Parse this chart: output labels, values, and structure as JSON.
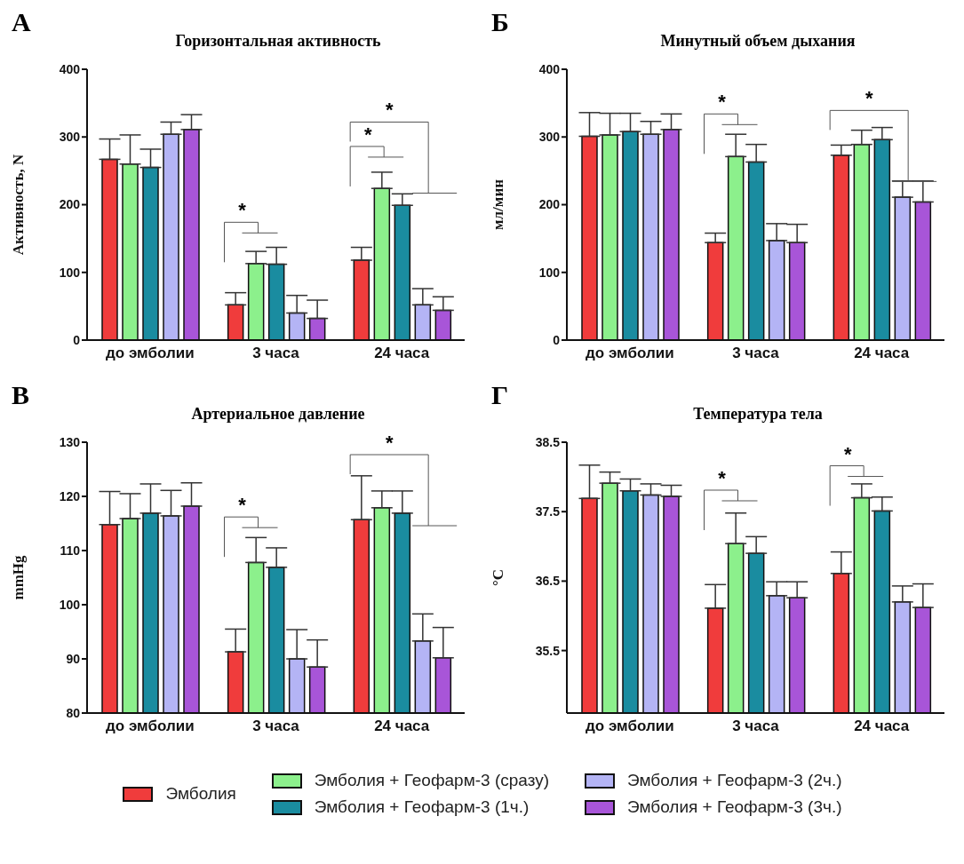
{
  "chart_data": [
    {
      "type": "bar",
      "title": "Горизонтальная активность",
      "ylabel": "Активность, N",
      "categories": [
        "до эмболии",
        "3 часа",
        "24 часа"
      ],
      "ylim": [
        0,
        400
      ],
      "yticks": [
        0,
        100,
        200,
        300,
        400
      ],
      "grid": false,
      "legend": false,
      "annotations": [
        "А",
        "*",
        "*",
        "*"
      ],
      "series": [
        {
          "color": "#f03c3c",
          "values": [
            267,
            52,
            118
          ],
          "errors": [
            [
              267,
              297
            ],
            [
              52,
              70
            ],
            [
              118,
              137
            ]
          ]
        },
        {
          "color": "#8cf08c",
          "values": [
            260,
            113,
            224
          ],
          "errors": [
            [
              260,
              303
            ],
            [
              113,
              131
            ],
            [
              224,
              248
            ]
          ]
        },
        {
          "color": "#1a8ca0",
          "values": [
            255,
            112,
            199
          ],
          "errors": [
            [
              255,
              282
            ],
            [
              112,
              137
            ],
            [
              199,
              216
            ]
          ]
        },
        {
          "color": "#b4b4f5",
          "values": [
            304,
            40,
            52
          ],
          "errors": [
            [
              304,
              322
            ],
            [
              40,
              66
            ],
            [
              52,
              76
            ]
          ]
        },
        {
          "color": "#a855d8",
          "values": [
            311,
            32,
            44
          ],
          "errors": [
            [
              311,
              333
            ],
            [
              32,
              59
            ],
            [
              44,
              64
            ]
          ]
        }
      ]
    },
    {
      "type": "bar",
      "title": "Минутный объем дыхания",
      "ylabel": "мл/мин",
      "categories": [
        "до эмболии",
        "3 часа",
        "24 часа"
      ],
      "ylim": [
        0,
        400
      ],
      "yticks": [
        0,
        100,
        200,
        300,
        400
      ],
      "grid": false,
      "legend": false,
      "annotations": [
        "Б",
        "*",
        "*"
      ],
      "series": [
        {
          "color": "#f03c3c",
          "values": [
            301,
            144,
            273
          ],
          "errors": [
            [
              301,
              336
            ],
            [
              144,
              158
            ],
            [
              273,
              288
            ]
          ]
        },
        {
          "color": "#8cf08c",
          "values": [
            303,
            271,
            289
          ],
          "errors": [
            [
              303,
              335
            ],
            [
              271,
              304
            ],
            [
              289,
              310
            ]
          ]
        },
        {
          "color": "#1a8ca0",
          "values": [
            308,
            263,
            296
          ],
          "errors": [
            [
              308,
              335
            ],
            [
              263,
              289
            ],
            [
              296,
              314
            ]
          ]
        },
        {
          "color": "#b4b4f5",
          "values": [
            304,
            147,
            211
          ],
          "errors": [
            [
              304,
              323
            ],
            [
              147,
              172
            ],
            [
              211,
              235
            ]
          ]
        },
        {
          "color": "#a855d8",
          "values": [
            311,
            144,
            204
          ],
          "errors": [
            [
              311,
              334
            ],
            [
              144,
              171
            ],
            [
              204,
              235
            ]
          ]
        }
      ]
    },
    {
      "type": "bar",
      "title": "Артериальное давление",
      "ylabel": "mmHg",
      "categories": [
        "до эмболии",
        "3 часа",
        "24 часа"
      ],
      "ylim": [
        80,
        130
      ],
      "yticks": [
        80,
        90,
        100,
        110,
        120,
        130
      ],
      "grid": false,
      "legend": false,
      "annotations": [
        "В",
        "*",
        "*"
      ],
      "series": [
        {
          "color": "#f03c3c",
          "values": [
            114.8,
            91.3,
            115.7
          ],
          "errors": [
            [
              114.8,
              120.9
            ],
            [
              91.3,
              95.5
            ],
            [
              115.7,
              123.8
            ]
          ]
        },
        {
          "color": "#8cf08c",
          "values": [
            115.9,
            107.8,
            117.9
          ],
          "errors": [
            [
              115.9,
              120.5
            ],
            [
              107.8,
              112.4
            ],
            [
              117.9,
              121.0
            ]
          ]
        },
        {
          "color": "#1a8ca0",
          "values": [
            116.9,
            106.9,
            116.9
          ],
          "errors": [
            [
              116.9,
              122.3
            ],
            [
              106.9,
              110.5
            ],
            [
              116.9,
              121.0
            ]
          ]
        },
        {
          "color": "#b4b4f5",
          "values": [
            116.4,
            90.0,
            93.3
          ],
          "errors": [
            [
              116.4,
              121.1
            ],
            [
              90.0,
              95.4
            ],
            [
              93.3,
              98.3
            ]
          ]
        },
        {
          "color": "#a855d8",
          "values": [
            118.2,
            88.5,
            90.2
          ],
          "errors": [
            [
              118.2,
              122.5
            ],
            [
              88.5,
              93.5
            ],
            [
              90.2,
              95.8
            ]
          ]
        }
      ]
    },
    {
      "type": "bar",
      "title": "Температура тела",
      "ylabel": "°C",
      "categories": [
        "до эмболии",
        "3 часа",
        "24 часа"
      ],
      "ylim": [
        34.6,
        38.5
      ],
      "yticks": [
        35.5,
        36.5,
        37.5,
        38.5
      ],
      "grid": false,
      "legend": "bottom",
      "annotations": [
        "Г",
        "*",
        "*"
      ],
      "series": [
        {
          "name": "Эмболия",
          "color": "#f03c3c",
          "values": [
            37.69,
            36.11,
            36.61
          ],
          "errors": [
            [
              37.69,
              38.17
            ],
            [
              36.11,
              36.45
            ],
            [
              36.61,
              36.92
            ]
          ]
        },
        {
          "name": "Эмболия + Геофарм-3 (сразу)",
          "color": "#8cf08c",
          "values": [
            37.91,
            37.04,
            37.7
          ],
          "errors": [
            [
              37.91,
              38.07
            ],
            [
              37.04,
              37.48
            ],
            [
              37.7,
              37.9
            ]
          ]
        },
        {
          "name": "Эмболия + Геофарм-3 (1ч.)",
          "color": "#1a8ca0",
          "values": [
            37.8,
            36.9,
            37.51
          ],
          "errors": [
            [
              37.8,
              37.97
            ],
            [
              36.9,
              37.14
            ],
            [
              37.51,
              37.71
            ]
          ]
        },
        {
          "name": "Эмболия + Геофарм-3 (2ч.)",
          "color": "#b4b4f5",
          "values": [
            37.74,
            36.29,
            36.2
          ],
          "errors": [
            [
              37.74,
              37.9
            ],
            [
              36.29,
              36.49
            ],
            [
              36.2,
              36.43
            ]
          ]
        },
        {
          "name": "Эмболия + Геофарм-3 (3ч.)",
          "color": "#a855d8",
          "values": [
            37.72,
            36.26,
            36.12
          ],
          "errors": [
            [
              37.72,
              37.88
            ],
            [
              36.26,
              36.49
            ],
            [
              36.12,
              36.46
            ]
          ]
        }
      ]
    }
  ]
}
